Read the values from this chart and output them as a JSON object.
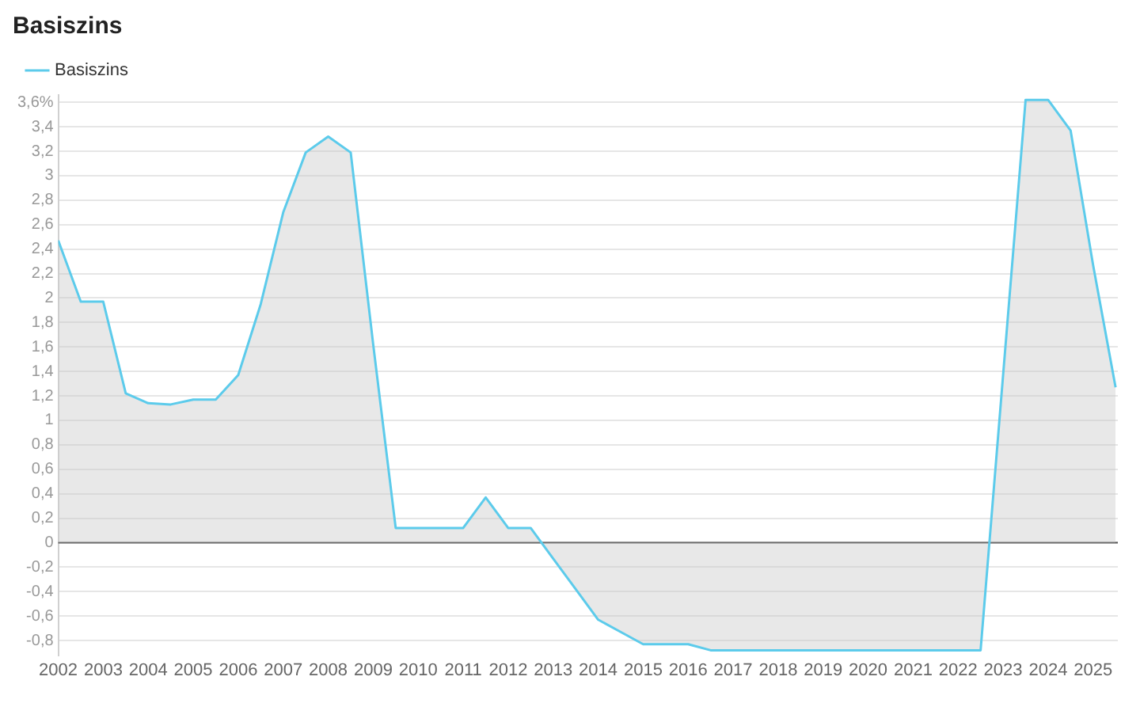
{
  "chart_data": {
    "type": "area",
    "title": "Basiszins",
    "series": [
      {
        "name": "Basiszins",
        "color": "#5ccbeb",
        "x": [
          2002,
          2002.5,
          2003,
          2003.5,
          2004,
          2004.5,
          2005,
          2005.5,
          2006,
          2006.5,
          2007,
          2007.5,
          2008,
          2008.5,
          2009,
          2009.5,
          2010,
          2010.5,
          2011,
          2011.5,
          2012,
          2012.5,
          2013,
          2013.5,
          2014,
          2014.5,
          2015,
          2015.5,
          2016,
          2016.5,
          2017,
          2017.5,
          2018,
          2018.5,
          2019,
          2019.5,
          2020,
          2020.5,
          2021,
          2021.5,
          2022,
          2022.5,
          2023.5,
          2024,
          2024.5,
          2025,
          2025.5
        ],
        "values": [
          2.47,
          1.97,
          1.97,
          1.22,
          1.14,
          1.13,
          1.17,
          1.17,
          1.37,
          1.95,
          2.7,
          3.19,
          3.32,
          3.19,
          1.62,
          0.12,
          0.12,
          0.12,
          0.12,
          0.37,
          0.12,
          0.12,
          -0.13,
          -0.38,
          -0.63,
          -0.73,
          -0.83,
          -0.83,
          -0.83,
          -0.88,
          -0.88,
          -0.88,
          -0.88,
          -0.88,
          -0.88,
          -0.88,
          -0.88,
          -0.88,
          -0.88,
          -0.88,
          -0.88,
          -0.88,
          3.62,
          3.62,
          3.37,
          2.27,
          1.27
        ]
      }
    ],
    "xlim": [
      2002,
      2025.55
    ],
    "xticks": [
      2002,
      2003,
      2004,
      2005,
      2006,
      2007,
      2008,
      2009,
      2010,
      2011,
      2012,
      2013,
      2014,
      2015,
      2016,
      2017,
      2018,
      2019,
      2020,
      2021,
      2022,
      2023,
      2024,
      2025
    ],
    "ylim": [
      -0.92,
      3.66
    ],
    "yticks": [
      {
        "value": -0.8,
        "label": "-0,8"
      },
      {
        "value": -0.6,
        "label": "-0,6"
      },
      {
        "value": -0.4,
        "label": "-0,4"
      },
      {
        "value": -0.2,
        "label": "-0,2"
      },
      0,
      {
        "value": 0.2,
        "label": "0,2"
      },
      {
        "value": 0.4,
        "label": "0,4"
      },
      {
        "value": 0.6,
        "label": "0,6"
      },
      {
        "value": 0.8,
        "label": "0,8"
      },
      1,
      {
        "value": 1.2,
        "label": "1,2"
      },
      {
        "value": 1.4,
        "label": "1,4"
      },
      {
        "value": 1.6,
        "label": "1,6"
      },
      {
        "value": 1.8,
        "label": "1,8"
      },
      2,
      {
        "value": 2.2,
        "label": "2,2"
      },
      {
        "value": 2.4,
        "label": "2,4"
      },
      {
        "value": 2.6,
        "label": "2,6"
      },
      {
        "value": 2.8,
        "label": "2,8"
      },
      3,
      {
        "value": 3.2,
        "label": "3,2"
      },
      {
        "value": 3.4,
        "label": "3,4"
      },
      {
        "value": 3.6,
        "label": "3,6%"
      }
    ],
    "ref_lines": [
      {
        "axis": "y",
        "value": 0,
        "color": "#555555"
      }
    ],
    "grid": "y",
    "legend": "top left"
  }
}
